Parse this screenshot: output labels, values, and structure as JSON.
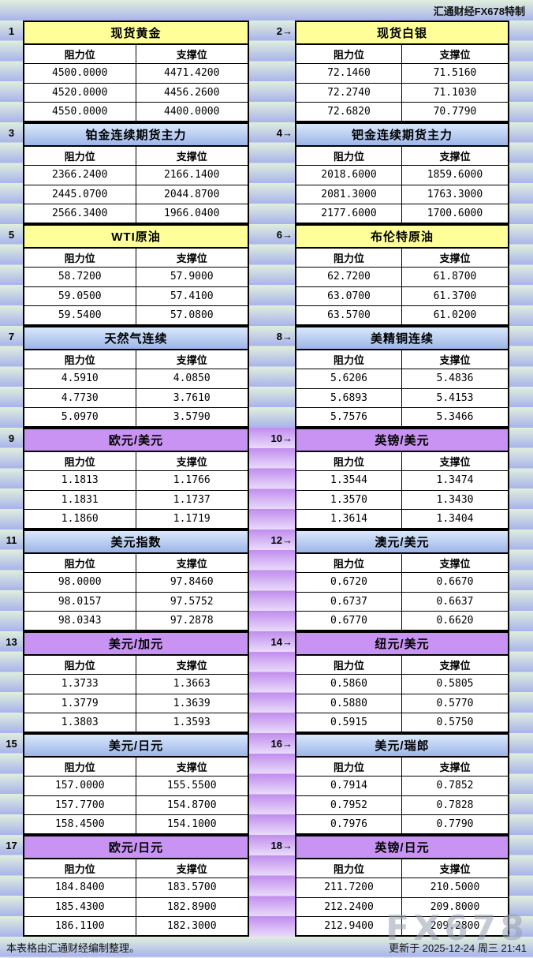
{
  "meta": {
    "brand_top": "汇通财经FX678特制",
    "footer_left": "本表格由汇通财经编制整理。",
    "footer_right": "更新于 2025-12-24 周三 21:41",
    "watermark": "FX678"
  },
  "headers": {
    "resistance": "阻力位",
    "support": "支撑位"
  },
  "colors": {
    "band_green": "#e0efdc",
    "band_blue": "#a9b3ec",
    "gutter_purple_dark": "#c18cee",
    "gutter_purple_light": "#e9dbfa",
    "title_yellow": "#ffff99",
    "title_blue_top": "#dae8fb",
    "title_blue_bottom": "#9db6e8",
    "title_purple": "#c893f2",
    "grid_line": "#000000"
  },
  "tables": [
    {
      "label": "1",
      "title": "现货黄金",
      "theme": "yellow",
      "rows": [
        [
          "4500.0000",
          "4471.4200"
        ],
        [
          "4520.0000",
          "4456.2600"
        ],
        [
          "4550.0000",
          "4400.0000"
        ]
      ]
    },
    {
      "label": "2→",
      "title": "现货白银",
      "theme": "yellow",
      "rows": [
        [
          "72.1460",
          "71.5160"
        ],
        [
          "72.2740",
          "71.1030"
        ],
        [
          "72.6820",
          "70.7790"
        ]
      ]
    },
    {
      "label": "3",
      "title": "铂金连续期货主力",
      "theme": "blue",
      "rows": [
        [
          "2366.2400",
          "2166.1400"
        ],
        [
          "2445.0700",
          "2044.8700"
        ],
        [
          "2566.3400",
          "1966.0400"
        ]
      ]
    },
    {
      "label": "4→",
      "title": "钯金连续期货主力",
      "theme": "blue",
      "rows": [
        [
          "2018.6000",
          "1859.6000"
        ],
        [
          "2081.3000",
          "1763.3000"
        ],
        [
          "2177.6000",
          "1700.6000"
        ]
      ]
    },
    {
      "label": "5",
      "title": "WTI原油",
      "theme": "yellow",
      "rows": [
        [
          "58.7200",
          "57.9000"
        ],
        [
          "59.0500",
          "57.4100"
        ],
        [
          "59.5400",
          "57.0800"
        ]
      ]
    },
    {
      "label": "6→",
      "title": "布伦特原油",
      "theme": "yellow",
      "rows": [
        [
          "62.7200",
          "61.8700"
        ],
        [
          "63.0700",
          "61.3700"
        ],
        [
          "63.5700",
          "61.0200"
        ]
      ]
    },
    {
      "label": "7",
      "title": "天然气连续",
      "theme": "blue",
      "rows": [
        [
          "4.5910",
          "4.0850"
        ],
        [
          "4.7730",
          "3.7610"
        ],
        [
          "5.0970",
          "3.5790"
        ]
      ]
    },
    {
      "label": "8→",
      "title": "美精铜连续",
      "theme": "blue",
      "rows": [
        [
          "5.6206",
          "5.4836"
        ],
        [
          "5.6893",
          "5.4153"
        ],
        [
          "5.7576",
          "5.3466"
        ]
      ]
    },
    {
      "label": "9",
      "title": "欧元/美元",
      "theme": "purple",
      "rows": [
        [
          "1.1813",
          "1.1766"
        ],
        [
          "1.1831",
          "1.1737"
        ],
        [
          "1.1860",
          "1.1719"
        ]
      ]
    },
    {
      "label": "10→",
      "title": "英镑/美元",
      "theme": "purple",
      "rows": [
        [
          "1.3544",
          "1.3474"
        ],
        [
          "1.3570",
          "1.3430"
        ],
        [
          "1.3614",
          "1.3404"
        ]
      ]
    },
    {
      "label": "11",
      "title": "美元指数",
      "theme": "blue",
      "rows": [
        [
          "98.0000",
          "97.8460"
        ],
        [
          "98.0157",
          "97.5752"
        ],
        [
          "98.0343",
          "97.2878"
        ]
      ]
    },
    {
      "label": "12→",
      "title": "澳元/美元",
      "theme": "blue",
      "rows": [
        [
          "0.6720",
          "0.6670"
        ],
        [
          "0.6737",
          "0.6637"
        ],
        [
          "0.6770",
          "0.6620"
        ]
      ]
    },
    {
      "label": "13",
      "title": "美元/加元",
      "theme": "purple",
      "rows": [
        [
          "1.3733",
          "1.3663"
        ],
        [
          "1.3779",
          "1.3639"
        ],
        [
          "1.3803",
          "1.3593"
        ]
      ]
    },
    {
      "label": "14→",
      "title": "纽元/美元",
      "theme": "purple",
      "rows": [
        [
          "0.5860",
          "0.5805"
        ],
        [
          "0.5880",
          "0.5770"
        ],
        [
          "0.5915",
          "0.5750"
        ]
      ]
    },
    {
      "label": "15",
      "title": "美元/日元",
      "theme": "blue",
      "rows": [
        [
          "157.0000",
          "155.5500"
        ],
        [
          "157.7700",
          "154.8700"
        ],
        [
          "158.4500",
          "154.1000"
        ]
      ]
    },
    {
      "label": "16→",
      "title": "美元/瑞郎",
      "theme": "blue",
      "rows": [
        [
          "0.7914",
          "0.7852"
        ],
        [
          "0.7952",
          "0.7828"
        ],
        [
          "0.7976",
          "0.7790"
        ]
      ]
    },
    {
      "label": "17",
      "title": "欧元/日元",
      "theme": "purple",
      "rows": [
        [
          "184.8400",
          "183.5700"
        ],
        [
          "185.4300",
          "182.8900"
        ],
        [
          "186.1100",
          "182.3000"
        ]
      ]
    },
    {
      "label": "18→",
      "title": "英镑/日元",
      "theme": "purple",
      "rows": [
        [
          "211.7200",
          "210.5000"
        ],
        [
          "212.2400",
          "209.8000"
        ],
        [
          "212.9400",
          "209.2800"
        ]
      ]
    }
  ],
  "gutter_themes": [
    "green",
    "green",
    "green",
    "green",
    "purple",
    "purple",
    "purple",
    "purple",
    "purple"
  ]
}
